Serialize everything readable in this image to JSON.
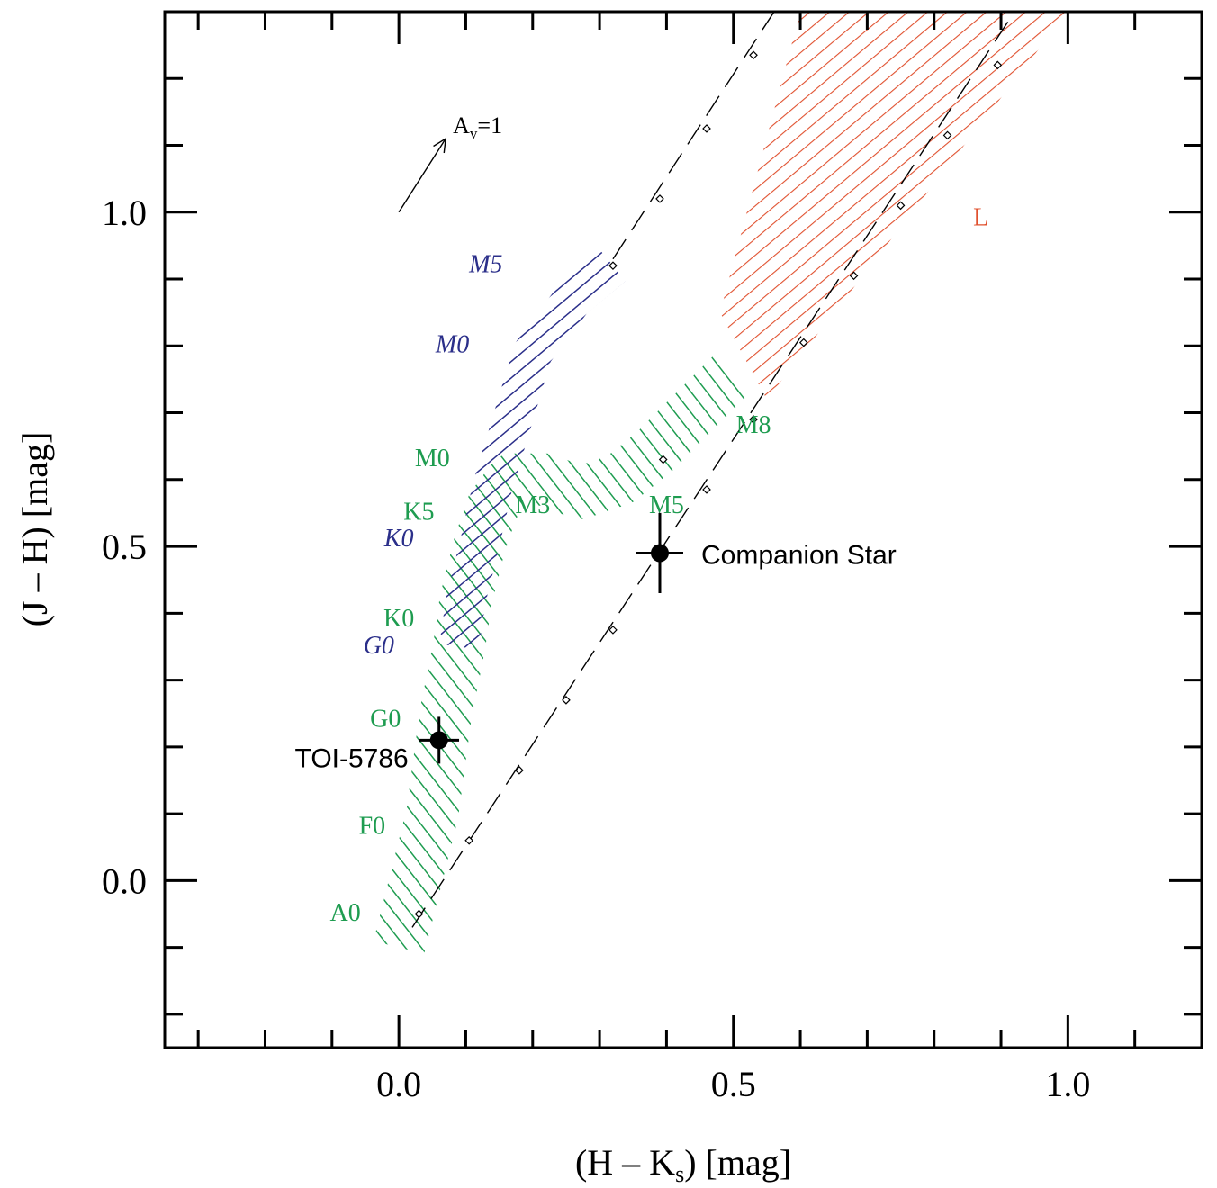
{
  "chart_data": {
    "type": "scatter",
    "xlabel": "(H – K",
    "xlabel_sub": "s",
    "xlabel_tail": ") [mag]",
    "ylabel": "(J – H) [mag]",
    "xlim": [
      -0.35,
      1.2
    ],
    "ylim": [
      -0.25,
      1.3
    ],
    "x_ticks": [
      {
        "value": 0.0,
        "label": "0.0"
      },
      {
        "value": 0.5,
        "label": "0.5"
      },
      {
        "value": 1.0,
        "label": "1.0"
      }
    ],
    "y_ticks": [
      {
        "value": 0.0,
        "label": "0.0"
      },
      {
        "value": 0.5,
        "label": "0.5"
      },
      {
        "value": 1.0,
        "label": "1.0"
      }
    ],
    "minor_step": 0.1,
    "colors": {
      "dwarf_locus": "#1e9c50",
      "giant_locus": "#2b2f8a",
      "l_dwarf_region": "#e0502e",
      "data_points": "#000000",
      "reddening_line": "#000000"
    },
    "stars": [
      {
        "name": "TOI-5786",
        "x": 0.06,
        "y": 0.21,
        "xerr": 0.03,
        "yerr": 0.035
      },
      {
        "name": "Companion Star",
        "x": 0.39,
        "y": 0.49,
        "xerr": 0.035,
        "yerr": 0.06
      }
    ],
    "reddening_vector": {
      "label_main": "A",
      "label_sub": "v",
      "label_tail": "=1",
      "x0": 0.0,
      "y0": 1.0,
      "x1": 0.07,
      "y1": 1.11
    },
    "reddening_line": {
      "x0": 0.02,
      "y0": -0.07,
      "x1": 0.94,
      "y1": 1.33,
      "markers": [
        {
          "x": 0.03,
          "y": -0.05
        },
        {
          "x": 0.105,
          "y": 0.06
        },
        {
          "x": 0.18,
          "y": 0.165
        },
        {
          "x": 0.25,
          "y": 0.27
        },
        {
          "x": 0.32,
          "y": 0.375
        },
        {
          "x": 0.46,
          "y": 0.585
        },
        {
          "x": 0.53,
          "y": 0.69
        },
        {
          "x": 0.605,
          "y": 0.805
        },
        {
          "x": 0.68,
          "y": 0.905
        },
        {
          "x": 0.75,
          "y": 1.01
        },
        {
          "x": 0.82,
          "y": 1.115
        },
        {
          "x": 0.895,
          "y": 1.22
        },
        {
          "x": 0.395,
          "y": 0.63
        }
      ]
    },
    "reddening_line_left": {
      "x0": 0.32,
      "y0": 0.93,
      "x1": 0.6,
      "y1": 1.36,
      "markers": [
        {
          "x": 0.32,
          "y": 0.92
        },
        {
          "x": 0.39,
          "y": 1.02
        },
        {
          "x": 0.46,
          "y": 1.125
        },
        {
          "x": 0.53,
          "y": 1.235
        }
      ]
    },
    "dwarf_locus_path": [
      {
        "x": 0.0,
        "y": -0.1
      },
      {
        "x": 0.05,
        "y": 0.1
      },
      {
        "x": 0.07,
        "y": 0.25
      },
      {
        "x": 0.09,
        "y": 0.35
      },
      {
        "x": 0.1,
        "y": 0.42
      },
      {
        "x": 0.12,
        "y": 0.5
      },
      {
        "x": 0.14,
        "y": 0.56
      },
      {
        "x": 0.17,
        "y": 0.6
      },
      {
        "x": 0.22,
        "y": 0.6
      },
      {
        "x": 0.27,
        "y": 0.58
      },
      {
        "x": 0.33,
        "y": 0.6
      },
      {
        "x": 0.38,
        "y": 0.64
      },
      {
        "x": 0.44,
        "y": 0.7
      },
      {
        "x": 0.5,
        "y": 0.76
      }
    ],
    "giant_locus_path": [
      {
        "x": 0.09,
        "y": 0.35
      },
      {
        "x": 0.1,
        "y": 0.42
      },
      {
        "x": 0.12,
        "y": 0.5
      },
      {
        "x": 0.14,
        "y": 0.59
      },
      {
        "x": 0.17,
        "y": 0.69
      },
      {
        "x": 0.2,
        "y": 0.79
      },
      {
        "x": 0.26,
        "y": 0.87
      },
      {
        "x": 0.32,
        "y": 0.92
      }
    ],
    "l_region_polygon": [
      {
        "x": 0.48,
        "y": 0.85
      },
      {
        "x": 0.6,
        "y": 1.3
      },
      {
        "x": 1.0,
        "y": 1.3
      },
      {
        "x": 0.55,
        "y": 0.72
      }
    ],
    "labels": [
      {
        "text": "L",
        "x": 0.87,
        "y": 0.98,
        "group": "l_dwarf"
      },
      {
        "text": "M5",
        "x": 0.13,
        "y": 0.91,
        "group": "giant"
      },
      {
        "text": "M0",
        "x": 0.08,
        "y": 0.79,
        "group": "giant"
      },
      {
        "text": "K0",
        "x": 0.0,
        "y": 0.5,
        "group": "giant"
      },
      {
        "text": "G0",
        "x": -0.03,
        "y": 0.34,
        "group": "giant"
      },
      {
        "text": "M0",
        "x": 0.05,
        "y": 0.62,
        "group": "dwarf"
      },
      {
        "text": "K5",
        "x": 0.03,
        "y": 0.54,
        "group": "dwarf"
      },
      {
        "text": "M3",
        "x": 0.2,
        "y": 0.55,
        "group": "dwarf"
      },
      {
        "text": "M5",
        "x": 0.4,
        "y": 0.55,
        "group": "dwarf"
      },
      {
        "text": "M8",
        "x": 0.53,
        "y": 0.67,
        "group": "dwarf"
      },
      {
        "text": "K0",
        "x": 0.0,
        "y": 0.38,
        "group": "dwarf"
      },
      {
        "text": "G0",
        "x": -0.02,
        "y": 0.23,
        "group": "dwarf"
      },
      {
        "text": "F0",
        "x": -0.04,
        "y": 0.07,
        "group": "dwarf"
      },
      {
        "text": "A0",
        "x": -0.08,
        "y": -0.06,
        "group": "dwarf"
      }
    ]
  }
}
